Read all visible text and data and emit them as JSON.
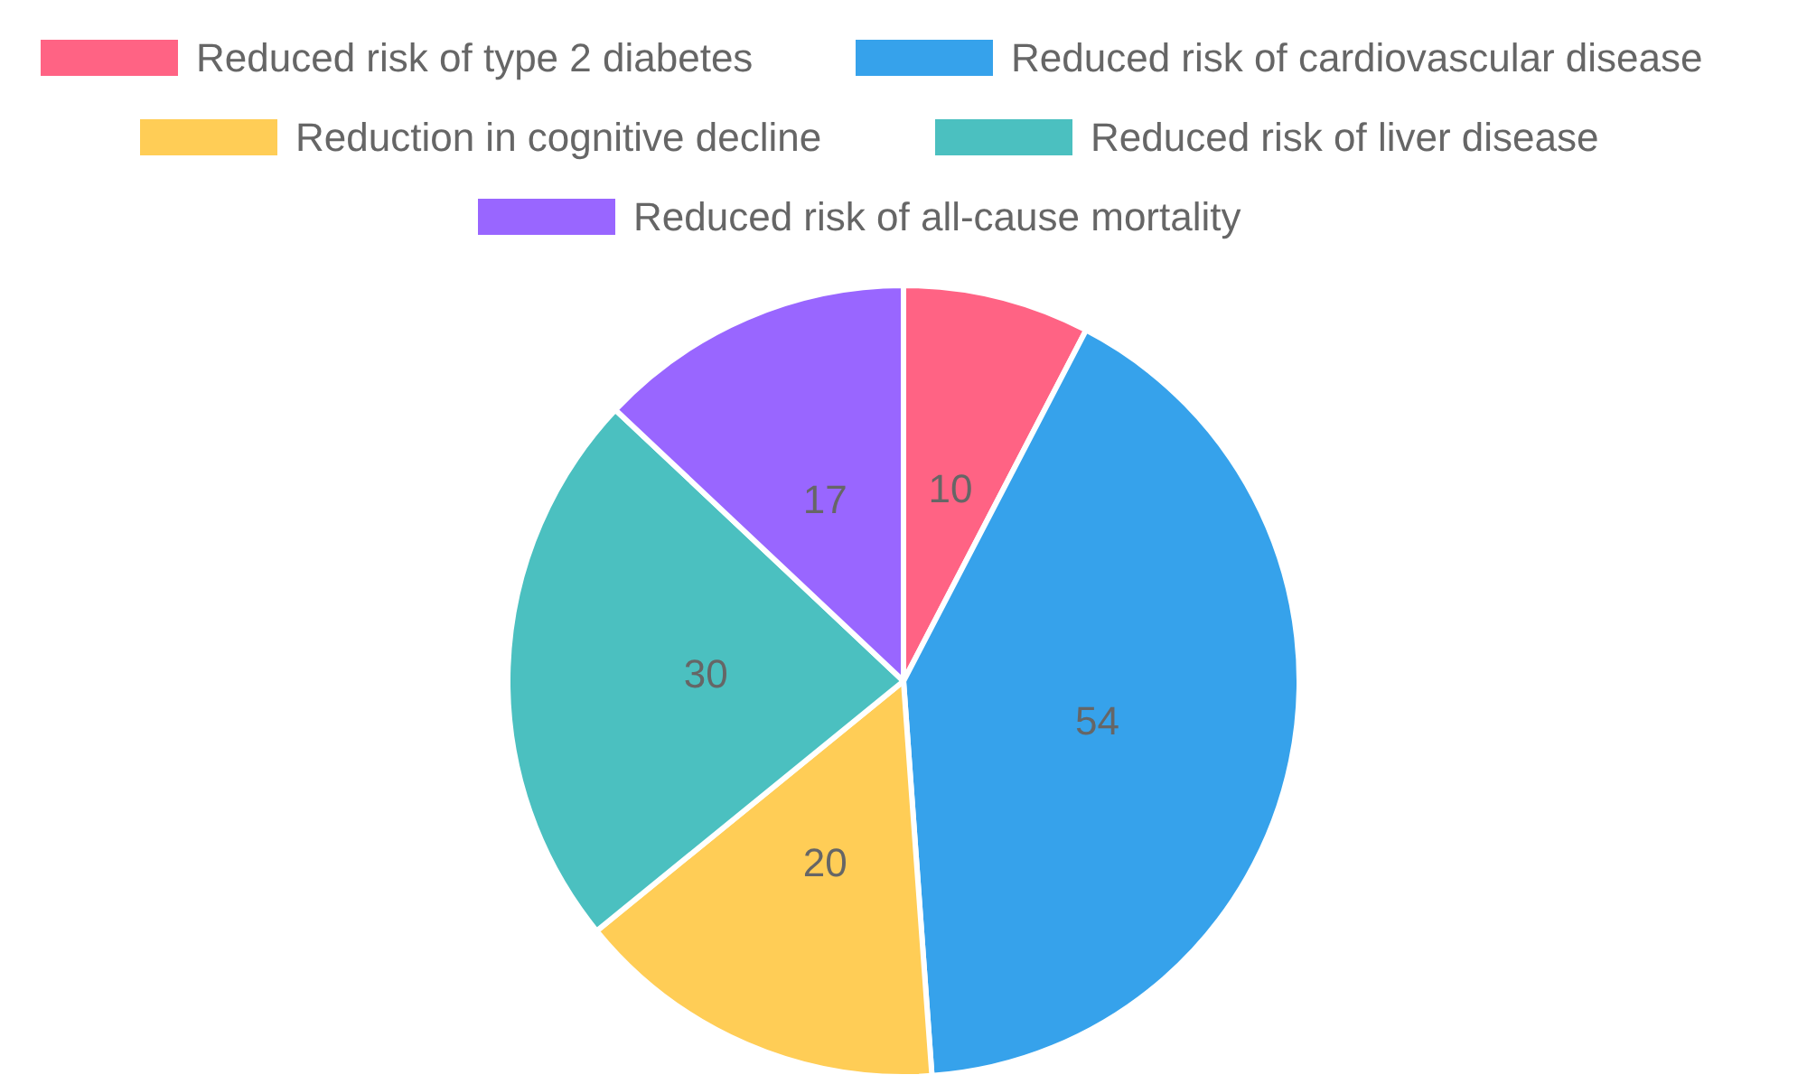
{
  "chart_data": {
    "type": "pie",
    "categories": [
      "Reduced risk of type 2 diabetes",
      "Reduced risk of cardiovascular disease",
      "Reduction in cognitive decline",
      "Reduced risk of liver disease",
      "Reduced risk of all-cause mortality"
    ],
    "values": [
      10,
      54,
      20,
      30,
      17
    ],
    "colors": [
      "#ff6384",
      "#36a2eb",
      "#ffcd56",
      "#4bc0c0",
      "#9966ff"
    ],
    "data_labels": true,
    "legend": "top"
  }
}
